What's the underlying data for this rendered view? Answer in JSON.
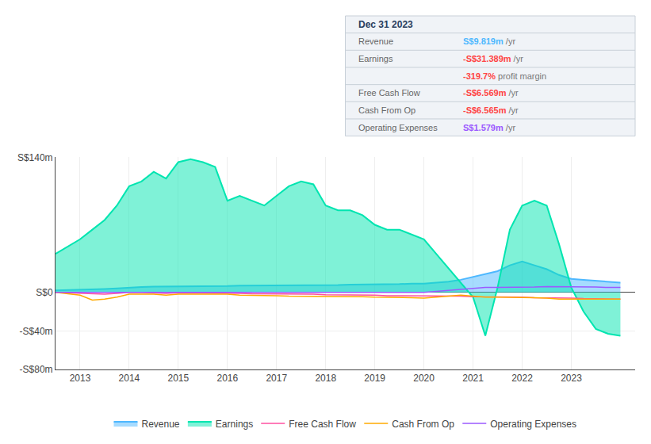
{
  "chart_data": {
    "type": "line",
    "x": [
      2012.5,
      2013.0,
      2013.25,
      2013.5,
      2013.75,
      2014.0,
      2014.25,
      2014.5,
      2014.75,
      2015.0,
      2015.25,
      2015.5,
      2015.75,
      2016.0,
      2016.25,
      2016.5,
      2016.75,
      2017.0,
      2017.25,
      2017.5,
      2017.75,
      2018.0,
      2018.25,
      2018.5,
      2018.75,
      2019.0,
      2019.25,
      2019.5,
      2019.75,
      2020.0,
      2020.25,
      2020.5,
      2020.75,
      2021.0,
      2021.25,
      2021.5,
      2021.75,
      2022.0,
      2022.25,
      2022.5,
      2022.75,
      2023.0,
      2023.25,
      2023.5,
      2023.75,
      2024.0
    ],
    "series": [
      {
        "name": "Revenue",
        "color": "#4db8ff",
        "type": "area",
        "values": [
          2,
          2.5,
          3,
          3.5,
          4,
          5,
          5.5,
          6,
          6,
          6,
          6.5,
          6.5,
          6.5,
          6.5,
          7,
          7,
          7,
          7,
          7,
          7.5,
          7.5,
          7.5,
          7.5,
          8,
          8,
          8,
          8.5,
          8.5,
          9,
          9,
          10,
          11,
          13,
          16,
          19,
          22,
          28,
          32,
          28,
          24,
          18,
          14,
          13,
          12,
          11,
          10
        ]
      },
      {
        "name": "Earnings",
        "color": "#00e5b0",
        "type": "area",
        "values": [
          40,
          55,
          65,
          75,
          90,
          110,
          115,
          125,
          118,
          135,
          138,
          135,
          130,
          95,
          100,
          95,
          90,
          100,
          110,
          115,
          112,
          90,
          85,
          85,
          80,
          70,
          65,
          65,
          60,
          55,
          40,
          25,
          10,
          -5,
          -45,
          5,
          65,
          90,
          95,
          90,
          50,
          5,
          -20,
          -38,
          -43,
          -45
        ]
      },
      {
        "name": "Free Cash Flow",
        "color": "#ff4fa0",
        "type": "line",
        "values": [
          0,
          -1,
          -1.5,
          -2,
          -1,
          0,
          0,
          -0.5,
          -1,
          -0.5,
          -0.5,
          -0.5,
          -0.5,
          -1,
          -1,
          -1.5,
          -1.5,
          -2,
          -2,
          -2,
          -2,
          -2.5,
          -2.5,
          -2.5,
          -3,
          -3,
          -3.5,
          -3.5,
          -3.5,
          -4,
          -4,
          -4,
          -4,
          -4.5,
          -4.5,
          -5,
          -5,
          -5,
          -5.5,
          -5.5,
          -6,
          -6,
          -6.5,
          -6.5,
          -7,
          -7
        ]
      },
      {
        "name": "Cash From Op",
        "color": "#ffaa00",
        "type": "line",
        "values": [
          0,
          -3,
          -8,
          -7,
          -5,
          -2,
          -2,
          -2,
          -3,
          -2,
          -2,
          -2,
          -2,
          -2,
          -3,
          -3,
          -3,
          -3.5,
          -4,
          -4,
          -4,
          -4,
          -4,
          -4.5,
          -4.5,
          -5,
          -5,
          -5.5,
          -5.5,
          -6,
          -5,
          -4,
          -3,
          -4,
          -5,
          -5,
          -5,
          -5,
          -5.5,
          -6,
          -7,
          -7,
          -7,
          -7,
          -7,
          -7
        ]
      },
      {
        "name": "Operating Expenses",
        "color": "#9b59ff",
        "type": "line",
        "values": [
          0,
          0,
          0,
          0,
          0,
          0,
          0,
          0,
          0,
          0,
          0,
          0,
          0,
          0,
          0,
          0,
          0,
          0,
          0,
          0,
          0,
          0,
          0,
          0,
          0,
          0,
          0,
          0,
          0,
          0,
          1,
          2,
          3,
          4,
          5,
          5,
          5,
          5,
          5.5,
          6,
          6,
          6,
          6,
          5.5,
          5,
          5
        ]
      }
    ],
    "xlim": [
      2012.5,
      2024.3
    ],
    "xticks": [
      2013,
      2014,
      2015,
      2016,
      2017,
      2018,
      2019,
      2020,
      2021,
      2022,
      2023
    ],
    "ylim": [
      -80,
      140
    ],
    "yticks": [
      {
        "value": -80,
        "label": "-S$80m"
      },
      {
        "value": -40,
        "label": "-S$40m"
      },
      {
        "value": 0,
        "label": "S$0"
      },
      {
        "value": 140,
        "label": "S$140m"
      }
    ],
    "grid": true,
    "legend": "bottom",
    "infobox": {
      "title": "Dec 31 2023",
      "rows": [
        {
          "label": "Revenue",
          "value": "S$9.819m",
          "suffix": " /yr",
          "color": "#4db8ff"
        },
        {
          "label": "Earnings",
          "value": "-S$31.389m",
          "suffix": " /yr",
          "color": "#ff4444"
        },
        {
          "value": "-319.7%",
          "suffix": " profit margin",
          "color": "#ff4444"
        },
        {
          "label": "Free Cash Flow",
          "value": "-S$6.569m",
          "suffix": " /yr",
          "color": "#ff4444"
        },
        {
          "label": "Cash From Op",
          "value": "-S$6.565m",
          "suffix": " /yr",
          "color": "#ff4444"
        },
        {
          "label": "Operating Expenses",
          "value": "S$1.579m",
          "suffix": " /yr",
          "color": "#9b59ff"
        }
      ]
    }
  }
}
